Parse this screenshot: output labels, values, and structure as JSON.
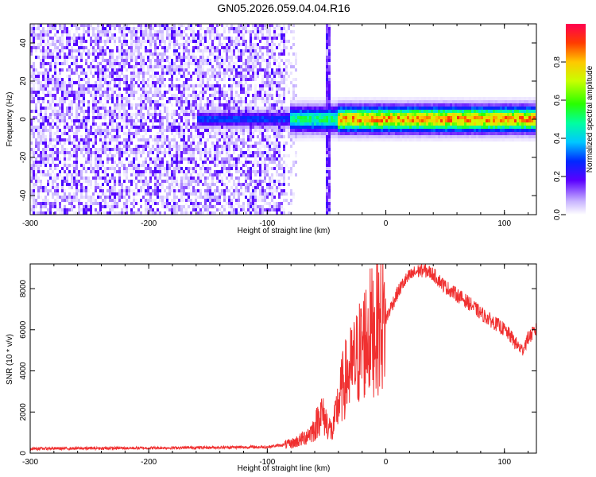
{
  "title": "GN05.2026.059.04.04.R16",
  "chart_data": [
    {
      "type": "heatmap",
      "xlabel": "Height of straight line (km)",
      "ylabel": "Frequency (Hz)",
      "xlim": [
        -300,
        127
      ],
      "ylim": [
        -50,
        50
      ],
      "xticks": [
        -300,
        -200,
        -100,
        0,
        100
      ],
      "yticks": [
        -40,
        -20,
        0,
        20,
        40
      ],
      "colorbar": {
        "label": "Normalized spectral amplitude",
        "ticks": [
          0.0,
          0.2,
          0.4,
          0.6,
          0.8
        ],
        "tick_labels": [
          "0.0",
          "0.2",
          "0.4",
          "0.6",
          "0.8"
        ],
        "range": [
          0,
          1
        ]
      },
      "features": [
        {
          "x_range": [
            -300,
            -85
          ],
          "y_range": [
            -50,
            50
          ],
          "amplitude": 0.12,
          "kind": "broadband noise"
        },
        {
          "x_range": [
            -85,
            -75
          ],
          "y_range": [
            -50,
            50
          ],
          "amplitude": 0.05,
          "kind": "fading noise"
        },
        {
          "x_range": [
            -50,
            -46
          ],
          "y_range": [
            -50,
            50
          ],
          "amplitude": 0.2,
          "kind": "vertical stripe"
        },
        {
          "x_range": [
            -160,
            127
          ],
          "y_center": 0,
          "amplitude_peak": 0.95,
          "kind": "carrier line"
        }
      ]
    },
    {
      "type": "line",
      "xlabel": "Height of straight line (km)",
      "ylabel": "SNR (10 * v/v)",
      "xlim": [
        -300,
        127
      ],
      "ylim": [
        0,
        9200
      ],
      "xticks": [
        -300,
        -200,
        -100,
        0,
        100
      ],
      "yticks": [
        0,
        2000,
        4000,
        6000,
        8000
      ],
      "color": "#f03030",
      "x": [
        -300,
        -200,
        -100,
        -80,
        -70,
        -60,
        -55,
        -50,
        -45,
        -40,
        -35,
        -30,
        -25,
        -20,
        -15,
        -10,
        -5,
        0,
        5,
        10,
        15,
        20,
        25,
        30,
        35,
        40,
        45,
        50,
        55,
        60,
        70,
        80,
        90,
        100,
        105,
        110,
        115,
        120,
        127
      ],
      "y": [
        220,
        250,
        300,
        450,
        700,
        1200,
        2000,
        1500,
        1000,
        2500,
        3500,
        4000,
        4500,
        5200,
        5800,
        6000,
        6300,
        6500,
        7200,
        7800,
        8300,
        8600,
        8800,
        8900,
        8850,
        8700,
        8400,
        8100,
        7900,
        7700,
        7300,
        6800,
        6400,
        6000,
        5700,
        5300,
        5000,
        5600,
        6000
      ]
    }
  ]
}
